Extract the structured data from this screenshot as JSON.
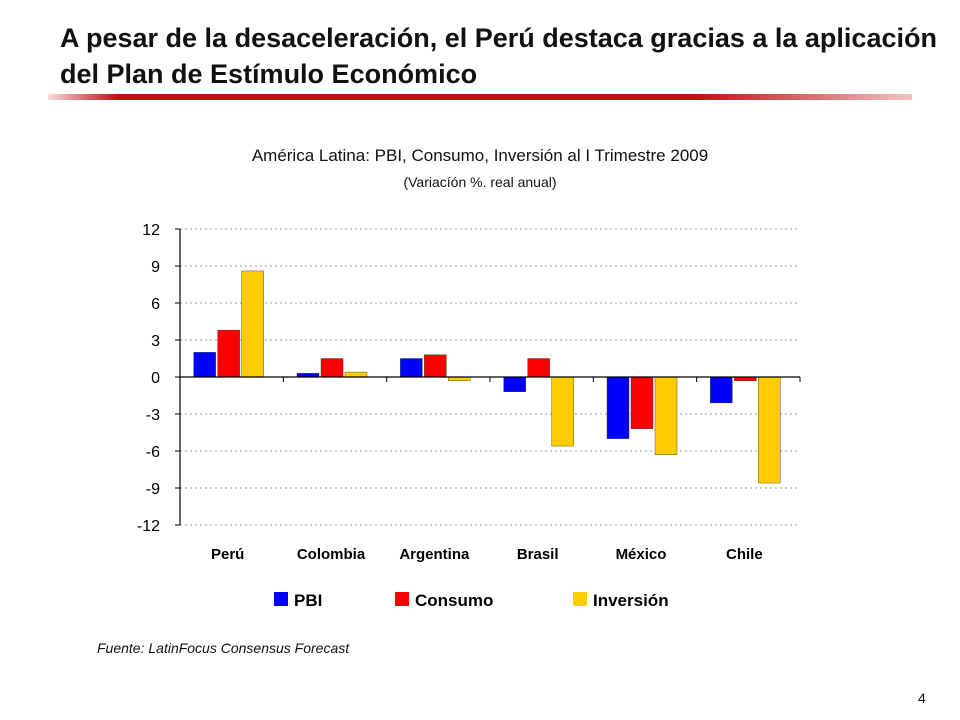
{
  "slide": {
    "title": "A pesar de la desaceleración, el Perú destaca gracias a la aplicación del Plan de Estímulo Económico",
    "source": "Fuente: LatinFocus Consensus Forecast",
    "page_number": "4"
  },
  "chart_data": {
    "type": "bar",
    "title": "América Latina: PBI, Consumo, Inversión al I Trimestre 2009",
    "subtitle": "(Variacíón %. real anual)",
    "categories": [
      "Perú",
      "Colombia",
      "Argentina",
      "Brasil",
      "México",
      "Chile"
    ],
    "series": [
      {
        "name": "PBI",
        "color": "#0000ff",
        "values": [
          2.0,
          0.3,
          1.5,
          -1.2,
          -5.0,
          -2.1
        ]
      },
      {
        "name": "Consumo",
        "color": "#ff0000",
        "values": [
          3.8,
          1.5,
          1.8,
          1.5,
          -4.2,
          -0.3
        ]
      },
      {
        "name": "Inversión",
        "color": "#ffcc00",
        "values": [
          8.6,
          0.4,
          -0.3,
          -5.6,
          -6.3,
          -8.6
        ]
      }
    ],
    "yticks": [
      "12",
      "9",
      "6",
      "3",
      "0",
      "-3",
      "-6",
      "-9",
      "-12"
    ],
    "ylim": [
      -12,
      12
    ],
    "grid": true,
    "legend": "bottom"
  }
}
